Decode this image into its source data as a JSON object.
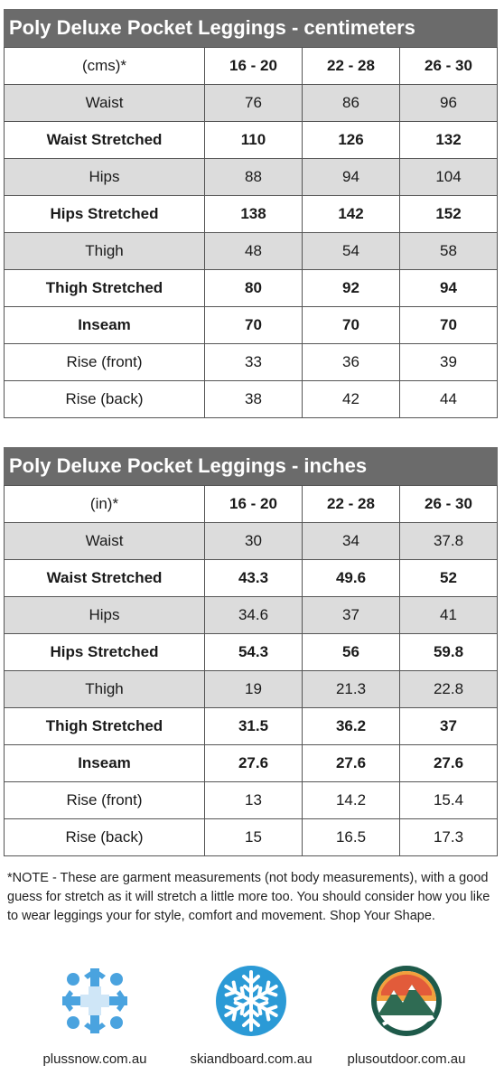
{
  "cm_chart": {
    "title": "Poly Deluxe Pocket Leggings - centimeters",
    "header": [
      "(cms)*",
      "16 - 20",
      "22 - 28",
      "26 - 30"
    ],
    "rows": [
      {
        "label": "Waist",
        "values": [
          "76",
          "86",
          "96"
        ],
        "style": "shade"
      },
      {
        "label": "Waist Stretched",
        "values": [
          "110",
          "126",
          "132"
        ],
        "style": "bold"
      },
      {
        "label": "Hips",
        "values": [
          "88",
          "94",
          "104"
        ],
        "style": "shade"
      },
      {
        "label": "Hips Stretched",
        "values": [
          "138",
          "142",
          "152"
        ],
        "style": "bold"
      },
      {
        "label": "Thigh",
        "values": [
          "48",
          "54",
          "58"
        ],
        "style": "shade"
      },
      {
        "label": "Thigh Stretched",
        "values": [
          "80",
          "92",
          "94"
        ],
        "style": "bold"
      },
      {
        "label": "Inseam",
        "values": [
          "70",
          "70",
          "70"
        ],
        "style": "bold"
      },
      {
        "label": "Rise (front)",
        "values": [
          "33",
          "36",
          "39"
        ],
        "style": "plain"
      },
      {
        "label": "Rise (back)",
        "values": [
          "38",
          "42",
          "44"
        ],
        "style": "plain"
      }
    ]
  },
  "in_chart": {
    "title": "Poly Deluxe Pocket Leggings - inches",
    "header": [
      "(in)*",
      "16 - 20",
      "22 - 28",
      "26 - 30"
    ],
    "rows": [
      {
        "label": "Waist",
        "values": [
          "30",
          "34",
          "37.8"
        ],
        "style": "shade"
      },
      {
        "label": "Waist Stretched",
        "values": [
          "43.3",
          "49.6",
          "52"
        ],
        "style": "bold"
      },
      {
        "label": "Hips",
        "values": [
          "34.6",
          "37",
          "41"
        ],
        "style": "shade"
      },
      {
        "label": "Hips Stretched",
        "values": [
          "54.3",
          "56",
          "59.8"
        ],
        "style": "bold"
      },
      {
        "label": "Thigh",
        "values": [
          "19",
          "21.3",
          "22.8"
        ],
        "style": "shade"
      },
      {
        "label": "Thigh Stretched",
        "values": [
          "31.5",
          "36.2",
          "37"
        ],
        "style": "bold"
      },
      {
        "label": "Inseam",
        "values": [
          "27.6",
          "27.6",
          "27.6"
        ],
        "style": "bold"
      },
      {
        "label": "Rise (front)",
        "values": [
          "13",
          "14.2",
          "15.4"
        ],
        "style": "plain"
      },
      {
        "label": "Rise (back)",
        "values": [
          "15",
          "16.5",
          "17.3"
        ],
        "style": "plain"
      }
    ]
  },
  "note": "*NOTE - These are garment measurements (not body measurements), with a good guess for stretch as it will stretch a little more too. You should consider how you like to wear leggings your for style, comfort and movement. Shop Your Shape.",
  "logos": [
    {
      "label": "plussnow.com.au",
      "icon": "plus-snowflake-icon",
      "color": "#4aa3df"
    },
    {
      "label": "skiandboard.com.au",
      "icon": "snowflake-badge-icon",
      "color": "#2b9ad6"
    },
    {
      "label": "plusoutdoor.com.au",
      "icon": "mountain-badge-icon",
      "color": "#1e5a4a"
    }
  ],
  "colors": {
    "title_bar": "#6b6b6b",
    "shaded_row": "#dcdcdc",
    "border": "#555555"
  }
}
